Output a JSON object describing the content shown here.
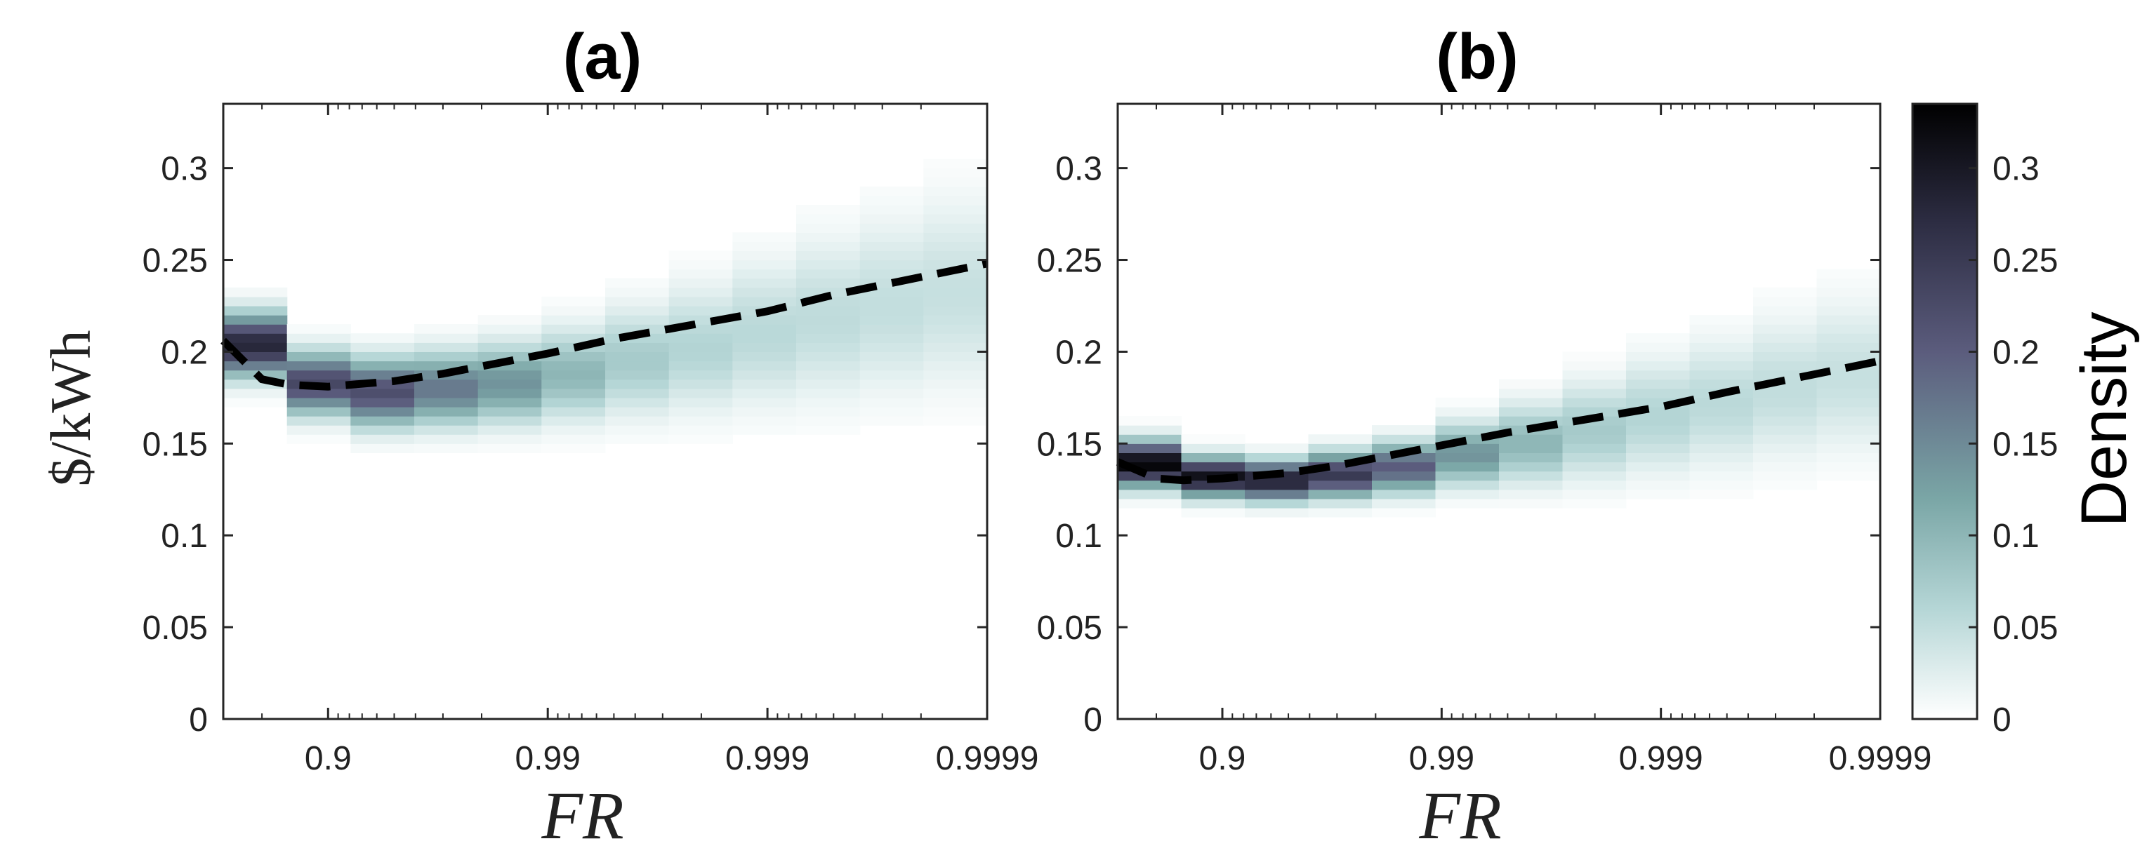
{
  "chart_data": [
    {
      "type": "heatmap",
      "panel": "(a)",
      "title": "(a)",
      "xlabel": "FR",
      "ylabel": "$/kWh",
      "x_scale": "log(1-FR)",
      "x_range": [
        0.7,
        0.9999
      ],
      "ylim": [
        0,
        0.335
      ],
      "x_tick_values": [
        0.9,
        0.99,
        0.999,
        0.9999
      ],
      "x_tick_labels": [
        "0.9",
        "0.99",
        "0.999",
        "0.9999"
      ],
      "y_tick_values": [
        0,
        0.05,
        0.1,
        0.15,
        0.2,
        0.25,
        0.3
      ],
      "y_tick_labels": [
        "0",
        "0.05",
        "0.1",
        "0.15",
        "0.2",
        "0.25",
        "0.3"
      ],
      "columns": [
        {
          "mean": 0.204,
          "sd": 0.011,
          "peak": 0.28
        },
        {
          "mean": 0.183,
          "sd": 0.011,
          "peak": 0.23
        },
        {
          "mean": 0.178,
          "sd": 0.012,
          "peak": 0.22
        },
        {
          "mean": 0.18,
          "sd": 0.013,
          "peak": 0.17
        },
        {
          "mean": 0.183,
          "sd": 0.014,
          "peak": 0.14
        },
        {
          "mean": 0.188,
          "sd": 0.016,
          "peak": 0.1
        },
        {
          "mean": 0.195,
          "sd": 0.019,
          "peak": 0.075
        },
        {
          "mean": 0.202,
          "sd": 0.022,
          "peak": 0.062
        },
        {
          "mean": 0.21,
          "sd": 0.025,
          "peak": 0.056
        },
        {
          "mean": 0.218,
          "sd": 0.028,
          "peak": 0.052
        },
        {
          "mean": 0.225,
          "sd": 0.03,
          "peak": 0.049
        },
        {
          "mean": 0.232,
          "sd": 0.032,
          "peak": 0.046
        }
      ],
      "trend": {
        "style": "dashed",
        "x": [
          0.7,
          0.8,
          0.85,
          0.9,
          0.95,
          0.97,
          0.99,
          0.995,
          0.999,
          0.9995,
          0.9999
        ],
        "y": [
          0.206,
          0.185,
          0.182,
          0.181,
          0.184,
          0.188,
          0.199,
          0.207,
          0.222,
          0.231,
          0.248
        ]
      }
    },
    {
      "type": "heatmap",
      "panel": "(b)",
      "title": "(b)",
      "xlabel": "FR",
      "ylabel": "",
      "x_scale": "log(1-FR)",
      "x_range": [
        0.7,
        0.9999
      ],
      "ylim": [
        0,
        0.335
      ],
      "x_tick_values": [
        0.9,
        0.99,
        0.999,
        0.9999
      ],
      "x_tick_labels": [
        "0.9",
        "0.99",
        "0.999",
        "0.9999"
      ],
      "y_tick_values": [
        0,
        0.05,
        0.1,
        0.15,
        0.2,
        0.25,
        0.3
      ],
      "y_tick_labels": [
        "0",
        "0.05",
        "0.1",
        "0.15",
        "0.2",
        "0.25",
        "0.3"
      ],
      "columns": [
        {
          "mean": 0.139,
          "sd": 0.008,
          "peak": 0.33
        },
        {
          "mean": 0.132,
          "sd": 0.007,
          "peak": 0.31
        },
        {
          "mean": 0.13,
          "sd": 0.007,
          "peak": 0.29
        },
        {
          "mean": 0.133,
          "sd": 0.008,
          "peak": 0.25
        },
        {
          "mean": 0.137,
          "sd": 0.009,
          "peak": 0.2
        },
        {
          "mean": 0.144,
          "sd": 0.011,
          "peak": 0.14
        },
        {
          "mean": 0.15,
          "sd": 0.014,
          "peak": 0.1
        },
        {
          "mean": 0.157,
          "sd": 0.017,
          "peak": 0.075
        },
        {
          "mean": 0.165,
          "sd": 0.02,
          "peak": 0.062
        },
        {
          "mean": 0.172,
          "sd": 0.022,
          "peak": 0.055
        },
        {
          "mean": 0.18,
          "sd": 0.024,
          "peak": 0.05
        },
        {
          "mean": 0.187,
          "sd": 0.026,
          "peak": 0.046
        }
      ],
      "trend": {
        "style": "dashed",
        "x": [
          0.7,
          0.8,
          0.85,
          0.9,
          0.95,
          0.97,
          0.99,
          0.995,
          0.999,
          0.9995,
          0.9999
        ],
        "y": [
          0.14,
          0.131,
          0.13,
          0.131,
          0.134,
          0.138,
          0.149,
          0.156,
          0.17,
          0.178,
          0.195
        ]
      }
    }
  ],
  "colorbar": {
    "label": "Density",
    "range": [
      0,
      0.335
    ],
    "tick_values": [
      0,
      0.05,
      0.1,
      0.15,
      0.2,
      0.25,
      0.3
    ],
    "tick_labels": [
      "0",
      "0.05",
      "0.1",
      "0.15",
      "0.2",
      "0.25",
      "0.3"
    ],
    "colormap": "bone (reversed)",
    "stops": [
      {
        "v": 0.0,
        "color": "#ffffff"
      },
      {
        "v": 0.06,
        "color": "#b5d6d6"
      },
      {
        "v": 0.12,
        "color": "#7aa6a6"
      },
      {
        "v": 0.2,
        "color": "#5b5c7d"
      },
      {
        "v": 0.27,
        "color": "#2d2d43"
      },
      {
        "v": 0.335,
        "color": "#000000"
      }
    ]
  }
}
